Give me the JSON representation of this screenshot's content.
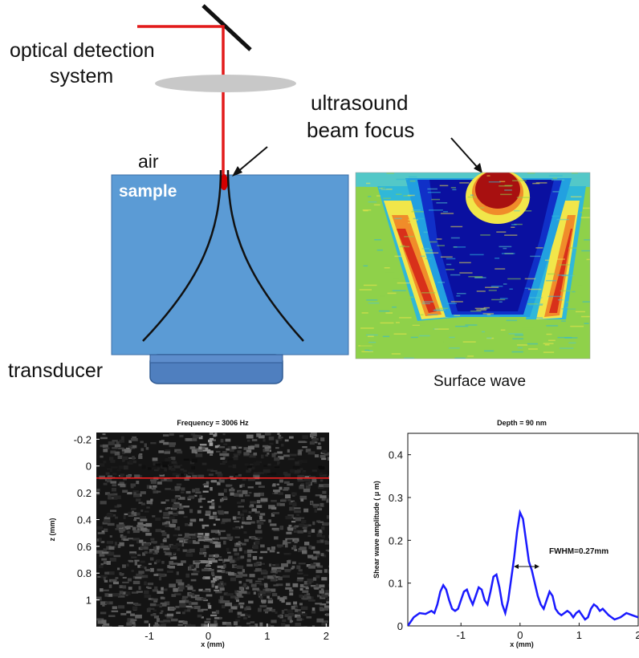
{
  "diagram": {
    "labels": {
      "optical_line1": "optical detection",
      "optical_line2": "system",
      "ultrasound_line1": "ultrasound",
      "ultrasound_line2": "beam focus",
      "air": "air",
      "sample": "sample",
      "transducer": "transducer",
      "surface_wave": "Surface wave"
    },
    "colors": {
      "laser": "#e21b1b",
      "sample": "#5b9bd5",
      "transducer": "#4f7fbf",
      "lens": "#c8c8c8",
      "focus": "#d40000"
    }
  },
  "chart_data": [
    {
      "type": "heatmap",
      "title": "Frequency = 3006 Hz",
      "xlabel": "x (mm)",
      "ylabel": "z (mm)",
      "xticks": [
        "-1",
        "0",
        "1",
        "2"
      ],
      "yticks": [
        "-0.2",
        "0",
        "0.2",
        "0.4",
        "0.6",
        "0.8",
        "1"
      ],
      "xlim": [
        -1.9,
        2.05
      ],
      "ylim": [
        -0.25,
        1.2
      ],
      "y_inverted": true,
      "colormap": "gray",
      "marker_line": {
        "z": 0.09,
        "color": "#ff2020"
      }
    },
    {
      "type": "line",
      "title": "Depth = 90 nm",
      "xlabel": "x (mm)",
      "ylabel": "Shear wave amplitude ( μ m)",
      "xticks": [
        "-1",
        "0",
        "1",
        "2"
      ],
      "yticks": [
        "0",
        "0.1",
        "0.2",
        "0.3",
        "0.4"
      ],
      "xlim": [
        -1.9,
        2.0
      ],
      "ylim": [
        0,
        0.45
      ],
      "annotation": "FWHM=0.27mm",
      "series": [
        {
          "color": "#1a1aff",
          "x": [
            -1.9,
            -1.8,
            -1.7,
            -1.6,
            -1.5,
            -1.45,
            -1.4,
            -1.35,
            -1.3,
            -1.25,
            -1.2,
            -1.15,
            -1.1,
            -1.05,
            -1.0,
            -0.95,
            -0.9,
            -0.85,
            -0.8,
            -0.75,
            -0.7,
            -0.65,
            -0.6,
            -0.55,
            -0.5,
            -0.45,
            -0.4,
            -0.35,
            -0.3,
            -0.25,
            -0.2,
            -0.15,
            -0.1,
            -0.05,
            0.0,
            0.05,
            0.1,
            0.15,
            0.2,
            0.25,
            0.3,
            0.35,
            0.4,
            0.45,
            0.5,
            0.55,
            0.6,
            0.65,
            0.7,
            0.75,
            0.8,
            0.85,
            0.9,
            0.95,
            1.0,
            1.05,
            1.1,
            1.15,
            1.2,
            1.25,
            1.3,
            1.35,
            1.4,
            1.5,
            1.6,
            1.7,
            1.8,
            1.9,
            2.0
          ],
          "y": [
            0.0,
            0.02,
            0.03,
            0.028,
            0.035,
            0.03,
            0.05,
            0.08,
            0.095,
            0.085,
            0.06,
            0.04,
            0.035,
            0.04,
            0.06,
            0.08,
            0.085,
            0.065,
            0.05,
            0.07,
            0.09,
            0.085,
            0.06,
            0.05,
            0.08,
            0.115,
            0.12,
            0.09,
            0.05,
            0.03,
            0.06,
            0.11,
            0.16,
            0.22,
            0.265,
            0.25,
            0.2,
            0.15,
            0.13,
            0.1,
            0.07,
            0.05,
            0.04,
            0.06,
            0.08,
            0.07,
            0.04,
            0.03,
            0.025,
            0.03,
            0.035,
            0.03,
            0.02,
            0.03,
            0.035,
            0.025,
            0.015,
            0.02,
            0.04,
            0.05,
            0.045,
            0.035,
            0.04,
            0.025,
            0.015,
            0.02,
            0.03,
            0.025,
            0.02
          ]
        }
      ]
    }
  ]
}
